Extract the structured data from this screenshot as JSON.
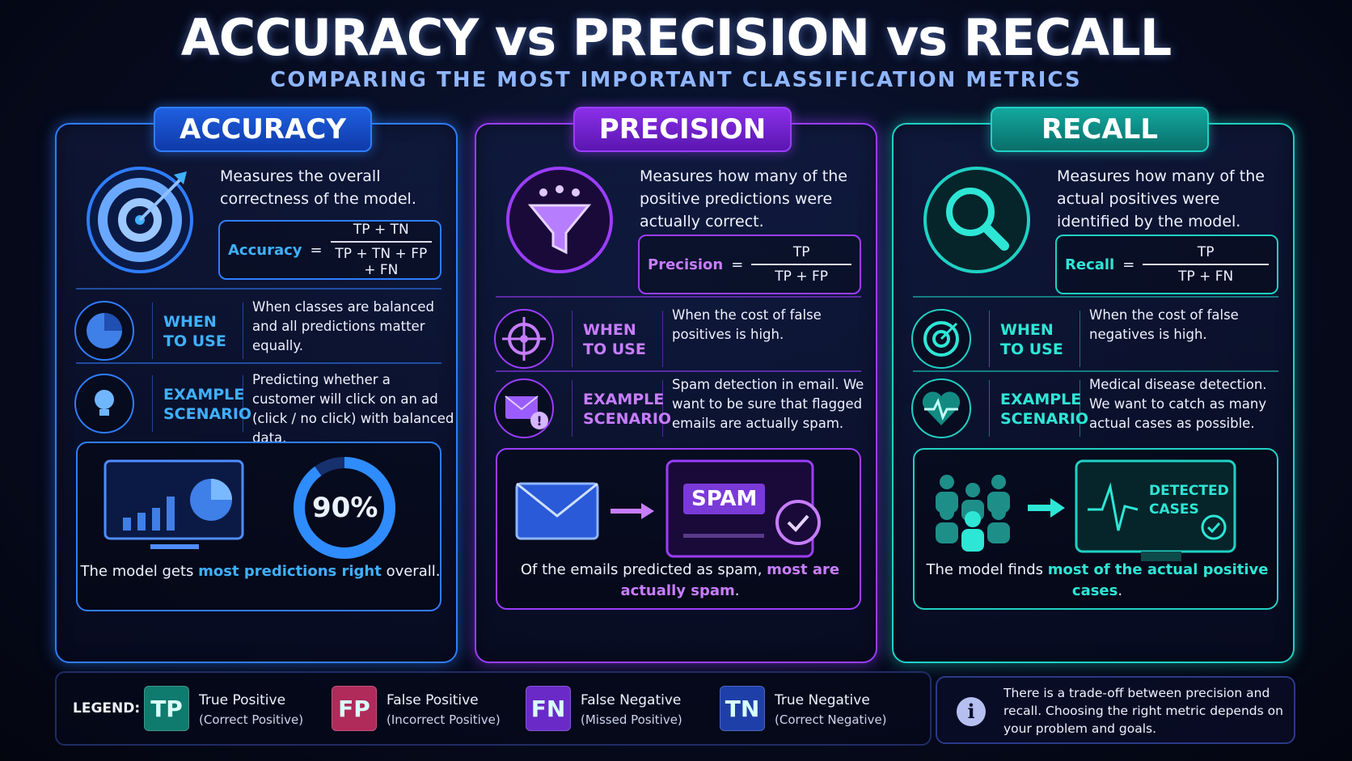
{
  "header": {
    "title": "ACCURACY vs PRECISION vs RECALL",
    "subtitle": "COMPARING THE MOST IMPORTANT CLASSIFICATION METRICS"
  },
  "panels": [
    {
      "id": "accuracy",
      "title": "ACCURACY",
      "color": "#2f7dff",
      "accent": "#3fb0ff",
      "icon": "target-icon",
      "description": "Measures the overall correctness of the model.",
      "formula": {
        "name": "Accuracy",
        "equals": "=",
        "numerator": "TP + TN",
        "denominator": "TP + TN + FP + FN"
      },
      "when": {
        "label": "WHEN TO USE",
        "icon": "pie-chart-icon",
        "text": "When classes are balanced and all predictions matter equally."
      },
      "example": {
        "label": "EXAMPLE SCENARIO",
        "icon": "lightbulb-icon",
        "text": "Predicting whether a customer will click on an ad (click / no click) with balanced data."
      },
      "illustration": {
        "value": "90%",
        "progress": 0.9
      },
      "caption": {
        "pre": "The model gets ",
        "highlight": "most predictions right",
        "post": " overall."
      }
    },
    {
      "id": "precision",
      "title": "PRECISION",
      "color": "#9b3dff",
      "accent": "#c77dff",
      "icon": "funnel-icon",
      "description": "Measures how many of the positive predictions were actually correct.",
      "formula": {
        "name": "Precision",
        "equals": "=",
        "numerator": "TP",
        "denominator": "TP + FP"
      },
      "when": {
        "label": "WHEN TO USE",
        "icon": "crosshair-icon",
        "text": "When the cost of false positives is high."
      },
      "example": {
        "label": "EXAMPLE SCENARIO",
        "icon": "email-alert-icon",
        "text": "Spam detection in email. We want to be sure that flagged emails are actually spam."
      },
      "illustration": {
        "label": "SPAM"
      },
      "caption": {
        "pre": "Of the emails predicted as spam, ",
        "highlight": "most are actually spam",
        "post": "."
      }
    },
    {
      "id": "recall",
      "title": "RECALL",
      "color": "#1fd1c4",
      "accent": "#2ee6d6",
      "icon": "magnifier-icon",
      "description": "Measures how many of the actual positives were identified by the model.",
      "formula": {
        "name": "Recall",
        "equals": "=",
        "numerator": "TP",
        "denominator": "TP + FN"
      },
      "when": {
        "label": "WHEN TO USE",
        "icon": "target-small-icon",
        "text": "When the cost of false negatives is high."
      },
      "example": {
        "label": "EXAMPLE SCENARIO",
        "icon": "heart-pulse-icon",
        "text": "Medical disease detection. We want to catch as many actual cases as possible."
      },
      "illustration": {
        "label": "DETECTED CASES"
      },
      "caption": {
        "pre": "The model finds ",
        "highlight": "most of the actual positive cases",
        "post": "."
      }
    }
  ],
  "legend": {
    "title": "LEGEND:",
    "items": [
      {
        "abbr": "TP",
        "name": "True Positive",
        "desc": "(Correct Positive)",
        "color": "#0f7a6e"
      },
      {
        "abbr": "FP",
        "name": "False Positive",
        "desc": "(Incorrect Positive)",
        "color": "#b02a5a"
      },
      {
        "abbr": "FN",
        "name": "False Negative",
        "desc": "(Missed Positive)",
        "color": "#6a2ac8"
      },
      {
        "abbr": "TN",
        "name": "True Negative",
        "desc": "(Correct Negative)",
        "color": "#1e3fa8"
      }
    ]
  },
  "note": {
    "icon": "info-icon",
    "text": "There is a trade-off between precision and recall. Choosing the right metric depends on your problem and goals."
  }
}
